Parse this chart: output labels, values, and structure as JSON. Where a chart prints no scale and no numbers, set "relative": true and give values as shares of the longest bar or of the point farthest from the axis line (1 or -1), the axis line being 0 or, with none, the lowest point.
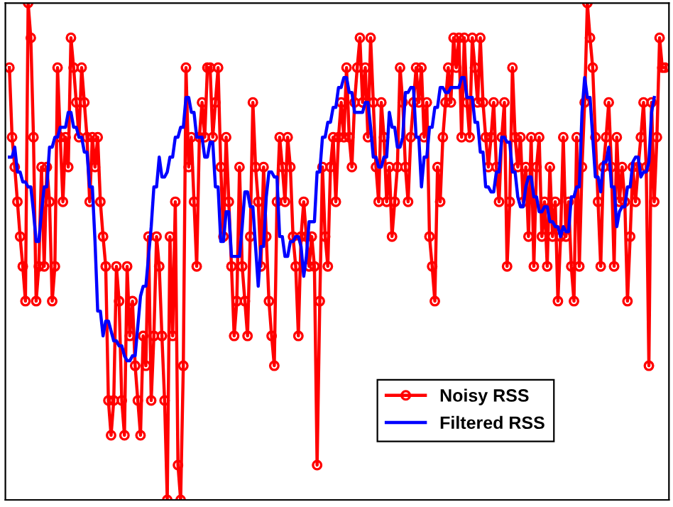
{
  "chart_data": {
    "type": "line",
    "relative": true,
    "legend": "bottom right",
    "categories": [
      null,
      null,
      null,
      null,
      null,
      null,
      null,
      null,
      null,
      null,
      null,
      null,
      null,
      null,
      null,
      null,
      null,
      null,
      null,
      null,
      null,
      null,
      null,
      null,
      null,
      null,
      null,
      null,
      null,
      null,
      null,
      null,
      null,
      null,
      null,
      null,
      null,
      null,
      null,
      null,
      null,
      null,
      null,
      null,
      null,
      null,
      null,
      null,
      null,
      null,
      null,
      null,
      null,
      null,
      null,
      null,
      null,
      null,
      null,
      null,
      null,
      null,
      null,
      null,
      null,
      null,
      null,
      null,
      null,
      null,
      null,
      null,
      null,
      null,
      null,
      null,
      null,
      null,
      null,
      null,
      null,
      null,
      null,
      null,
      null,
      null,
      null,
      null,
      null,
      null,
      null,
      null,
      null,
      null,
      null,
      null,
      null,
      null,
      null,
      null,
      null,
      null,
      null,
      null,
      null,
      null,
      null,
      null,
      null,
      null,
      null,
      null,
      null,
      null,
      null,
      null,
      null,
      null,
      null,
      null,
      null,
      null,
      null,
      null,
      null,
      null,
      null,
      null,
      null,
      null,
      null,
      null,
      null,
      null,
      null,
      null,
      null,
      null,
      null,
      null,
      null,
      null,
      null,
      null,
      null,
      null,
      null,
      null,
      null,
      null,
      null,
      null,
      null,
      null,
      null,
      null,
      null,
      null,
      null,
      null,
      null,
      null,
      null,
      null,
      null,
      null,
      null,
      null,
      null,
      null,
      null,
      null,
      null,
      null,
      null,
      null,
      null,
      null,
      null,
      null,
      null,
      null,
      null,
      null,
      null,
      null,
      null,
      null,
      null,
      null,
      null,
      null,
      null,
      null,
      null,
      null,
      null,
      null,
      null,
      null,
      null,
      null,
      null,
      null,
      null,
      null,
      null,
      null,
      null,
      null,
      null,
      null,
      null,
      null,
      null,
      null,
      null,
      null,
      null,
      null,
      null,
      null,
      null,
      null,
      null,
      null,
      null,
      null,
      null,
      null,
      null,
      null,
      null,
      null,
      null,
      null,
      null,
      null,
      null,
      null,
      null,
      null,
      null,
      null,
      null,
      null
    ],
    "series": [
      {
        "name": "Noisy RSS",
        "color": "#ff0000",
        "marker": "circle",
        "line_style": "solid",
        "values": [
          0.87,
          0.73,
          0.67,
          0.6,
          0.53,
          0.47,
          0.4,
          1,
          0.93,
          0.73,
          0.4,
          0.47,
          0.67,
          0.47,
          0.67,
          0.6,
          0.4,
          0.47,
          0.87,
          0.73,
          0.6,
          0.73,
          0.67,
          0.93,
          0.87,
          0.8,
          0.73,
          0.87,
          0.8,
          0.73,
          0.6,
          0.73,
          0.67,
          0.73,
          0.6,
          0.53,
          0.47,
          0.2,
          0.13,
          0.2,
          0.47,
          0.4,
          0.2,
          0.13,
          0.47,
          0.33,
          0.4,
          0.27,
          0.2,
          0.13,
          0.33,
          0.27,
          0.53,
          0.2,
          0.33,
          0.53,
          0.47,
          0.33,
          0.2,
          0,
          0.53,
          0.33,
          0.6,
          0.07,
          0,
          0.27,
          0.87,
          0.67,
          0.73,
          0.6,
          0.47,
          0.73,
          0.8,
          0.73,
          0.87,
          0.87,
          0.73,
          0.8,
          0.87,
          0.67,
          0.53,
          0.73,
          0.6,
          0.47,
          0.33,
          0.4,
          0.67,
          0.47,
          0.4,
          0.33,
          0.53,
          0.8,
          0.67,
          0.6,
          0.47,
          0.67,
          0.53,
          0.4,
          0.33,
          0.27,
          0.6,
          0.73,
          0.67,
          0.6,
          0.73,
          0.67,
          0.53,
          0.47,
          0.33,
          0.53,
          0.6,
          0.53,
          0.47,
          0.53,
          0.47,
          0.07,
          0.4,
          0.67,
          0.53,
          0.47,
          0.67,
          0.73,
          0.6,
          0.73,
          0.8,
          0.73,
          0.87,
          0.73,
          0.67,
          0.8,
          0.87,
          0.93,
          0.8,
          0.87,
          0.73,
          0.93,
          0.8,
          0.67,
          0.6,
          0.8,
          0.73,
          0.6,
          0.67,
          0.53,
          0.6,
          0.67,
          0.87,
          0.8,
          0.67,
          0.6,
          0.73,
          0.8,
          0.87,
          0.8,
          0.87,
          0.73,
          0.8,
          0.53,
          0.47,
          0.4,
          0.67,
          0.6,
          0.73,
          0.8,
          0.87,
          0.8,
          0.93,
          0.87,
          0.93,
          0.73,
          0.93,
          0.8,
          0.73,
          0.93,
          0.87,
          0.8,
          0.93,
          0.8,
          0.73,
          0.67,
          0.73,
          0.8,
          0.67,
          0.6,
          0.73,
          0.8,
          0.47,
          0.6,
          0.87,
          0.73,
          0.67,
          0.73,
          0.6,
          0.67,
          0.53,
          0.73,
          0.47,
          0.67,
          0.73,
          0.53,
          0.6,
          0.47,
          0.67,
          0.53,
          0.6,
          0.4,
          0.53,
          0.73,
          0.53,
          0.6,
          0.47,
          0.4,
          0.73,
          0.47,
          0.67,
          0.8,
          1,
          0.93,
          0.87,
          0.73,
          0.6,
          0.47,
          0.67,
          0.73,
          0.8,
          0.67,
          0.47,
          0.73,
          0.6,
          0.67,
          0.6,
          0.4,
          0.53,
          0.67,
          0.6,
          0.67,
          0.73,
          0.8,
          0.67,
          0.27,
          0.8,
          0.6,
          0.73,
          0.93,
          0.87,
          0.87
        ]
      },
      {
        "name": "Filtered RSS",
        "color": "#0000ff",
        "marker": "none",
        "line_style": "solid",
        "values": [
          0.69,
          0.69,
          0.71,
          0.66,
          0.66,
          0.64,
          0.64,
          0.63,
          0.63,
          0.58,
          0.52,
          0.52,
          0.58,
          0.63,
          0.63,
          0.71,
          0.71,
          0.73,
          0.73,
          0.75,
          0.75,
          0.75,
          0.78,
          0.78,
          0.75,
          0.75,
          0.73,
          0.73,
          0.7,
          0.7,
          0.63,
          0.63,
          0.52,
          0.38,
          0.38,
          0.33,
          0.36,
          0.36,
          0.34,
          0.32,
          0.32,
          0.31,
          0.31,
          0.29,
          0.28,
          0.28,
          0.29,
          0.29,
          0.35,
          0.41,
          0.43,
          0.43,
          0.49,
          0.55,
          0.63,
          0.63,
          0.69,
          0.65,
          0.65,
          0.66,
          0.69,
          0.69,
          0.73,
          0.73,
          0.75,
          0.75,
          0.81,
          0.81,
          0.78,
          0.78,
          0.73,
          0.73,
          0.73,
          0.69,
          0.69,
          0.72,
          0.72,
          0.63,
          0.63,
          0.52,
          0.52,
          0.58,
          0.58,
          0.49,
          0.49,
          0.49,
          0.49,
          0.55,
          0.62,
          0.62,
          0.59,
          0.59,
          0.51,
          0.43,
          0.51,
          0.51,
          0.61,
          0.66,
          0.66,
          0.65,
          0.65,
          0.53,
          0.53,
          0.49,
          0.49,
          0.52,
          0.52,
          0.53,
          0.53,
          0.51,
          0.45,
          0.49,
          0.56,
          0.56,
          0.56,
          0.66,
          0.66,
          0.73,
          0.73,
          0.76,
          0.76,
          0.79,
          0.79,
          0.83,
          0.83,
          0.85,
          0.85,
          0.82,
          0.82,
          0.78,
          0.78,
          0.78,
          0.78,
          0.8,
          0.8,
          0.75,
          0.69,
          0.69,
          0.67,
          0.67,
          0.69,
          0.69,
          0.78,
          0.75,
          0.75,
          0.71,
          0.71,
          0.73,
          0.82,
          0.82,
          0.83,
          0.83,
          0.73,
          0.73,
          0.63,
          0.69,
          0.69,
          0.75,
          0.75,
          0.79,
          0.79,
          0.83,
          0.83,
          0.82,
          0.82,
          0.83,
          0.83,
          0.83,
          0.83,
          0.85,
          0.85,
          0.81,
          0.81,
          0.81,
          0.76,
          0.76,
          0.7,
          0.7,
          0.63,
          0.63,
          0.62,
          0.62,
          0.66,
          0.66,
          0.73,
          0.73,
          0.72,
          0.72,
          0.66,
          0.66,
          0.61,
          0.59,
          0.59,
          0.63,
          0.65,
          0.65,
          0.61,
          0.61,
          0.58,
          0.58,
          0.59,
          0.59,
          0.56,
          0.56,
          0.55,
          0.55,
          0.53,
          0.55,
          0.54,
          0.54,
          0.61,
          0.61,
          0.63,
          0.63,
          0.78,
          0.85,
          0.81,
          0.81,
          0.73,
          0.65,
          0.65,
          0.62,
          0.68,
          0.68,
          0.71,
          0.63,
          0.63,
          0.55,
          0.58,
          0.59,
          0.59,
          0.63,
          0.63,
          0.68,
          0.69,
          0.69,
          0.65,
          0.66,
          0.66,
          0.68,
          0.78,
          0.81,
          null,
          null,
          null,
          null
        ]
      }
    ]
  }
}
